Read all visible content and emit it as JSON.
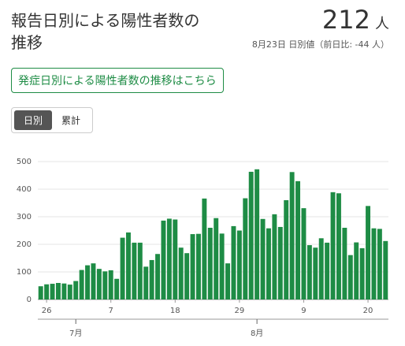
{
  "header": {
    "title": "報告日別による陽性者数の推移",
    "total": "212",
    "unit": "人",
    "note": "8月23日 日別値（前日比: -44 人）"
  },
  "button": "発症日別による陽性者数の推移はこちら",
  "toggle": [
    "日別",
    "累計"
  ],
  "chart_data": {
    "type": "bar",
    "color": "#1e8c45",
    "grid": true,
    "ylim": [
      0,
      500
    ],
    "yticks": [
      0,
      100,
      200,
      300,
      400,
      500
    ],
    "categories": [
      null,
      "26",
      null,
      null,
      null,
      null,
      null,
      null,
      null,
      null,
      null,
      null,
      "7",
      null,
      null,
      null,
      null,
      null,
      null,
      null,
      null,
      null,
      null,
      "18",
      null,
      null,
      null,
      null,
      null,
      null,
      null,
      null,
      null,
      null,
      "29",
      null,
      null,
      null,
      null,
      null,
      null,
      null,
      null,
      null,
      null,
      "9",
      null,
      null,
      null,
      null,
      null,
      null,
      null,
      null,
      null,
      null,
      "20",
      null,
      null,
      null
    ],
    "month_categories": [
      null,
      null,
      null,
      null,
      null,
      null,
      "7月",
      null,
      null,
      null,
      null,
      null,
      null,
      null,
      null,
      null,
      null,
      null,
      null,
      null,
      null,
      null,
      null,
      null,
      null,
      null,
      null,
      null,
      null,
      null,
      null,
      null,
      null,
      null,
      null,
      null,
      null,
      "8月",
      null,
      null,
      null,
      null,
      null,
      null,
      null,
      null,
      null,
      null,
      null,
      null,
      null,
      null,
      null,
      null,
      null,
      null,
      null,
      null,
      null,
      null
    ],
    "values": [
      48,
      55,
      57,
      60,
      58,
      54,
      67,
      107,
      124,
      131,
      111,
      102,
      106,
      75,
      224,
      243,
      206,
      206,
      119,
      143,
      165,
      286,
      293,
      290,
      188,
      168,
      237,
      238,
      366,
      260,
      295,
      239,
      131,
      266,
      250,
      367,
      463,
      472,
      292,
      258,
      309,
      263,
      360,
      462,
      429,
      331,
      197,
      188,
      222,
      206,
      389,
      385,
      260,
      161,
      207,
      186,
      339,
      258,
      256,
      212
    ]
  }
}
